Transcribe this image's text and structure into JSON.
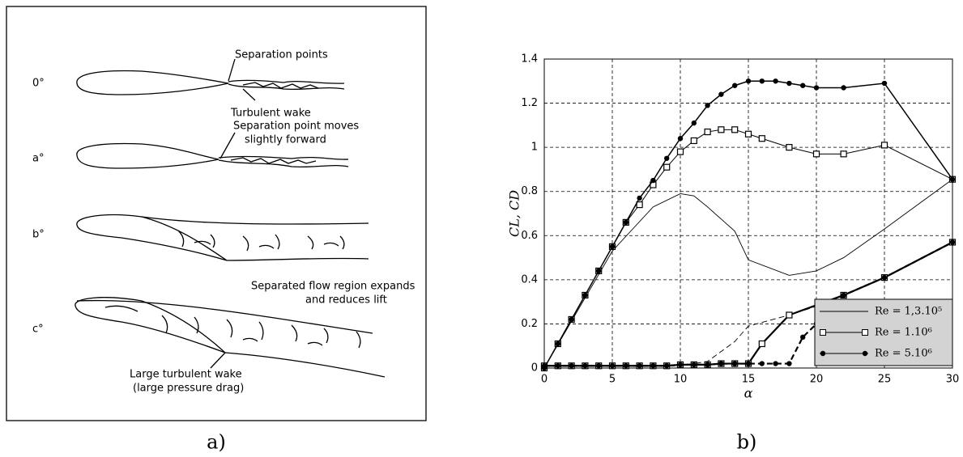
{
  "diagram": {
    "angles": [
      "0°",
      "a°",
      "b°",
      "c°"
    ],
    "labels": [
      "Separation points",
      "Turbulent wake",
      "Separation point moves",
      "slightly forward",
      "Separated flow region expands",
      "and reduces lift",
      "Large turbulent wake",
      "(large pressure drag)"
    ]
  },
  "captions": [
    "a)",
    "b)"
  ],
  "chart_data": {
    "type": "line",
    "xlabel": "α",
    "ylabel": "CL,  CD",
    "xlim": [
      0,
      30
    ],
    "xticks": [
      0,
      5,
      10,
      15,
      20,
      25,
      30
    ],
    "ylim": [
      0,
      1.4
    ],
    "yticks": [
      0,
      0.2,
      0.4,
      0.6,
      0.8,
      1,
      1.2,
      1.4
    ],
    "grid": true,
    "legend": "lower right",
    "series": [
      {
        "name": "Re = 1,3.10⁵",
        "color": "#000000",
        "marker": "none",
        "x": [
          0,
          5,
          8,
          10,
          11,
          12,
          14,
          15,
          18,
          20,
          22,
          25,
          30
        ],
        "values": [
          0,
          0.53,
          0.73,
          0.79,
          0.78,
          0.73,
          0.62,
          0.49,
          0.42,
          0.44,
          0.5,
          0.63,
          0.855
        ],
        "drag_x": [
          0,
          10,
          12,
          14,
          15,
          18,
          20,
          25,
          30
        ],
        "drag_values": [
          0.01,
          0.01,
          0.03,
          0.12,
          0.19,
          0.24,
          0.28,
          0.41,
          0.57
        ],
        "drag_dash": true
      },
      {
        "name": "Re = 1.10⁶",
        "color": "#000000",
        "marker": "square",
        "x": [
          0,
          1,
          2,
          3,
          4,
          5,
          6,
          7,
          8,
          9,
          10,
          11,
          12,
          13,
          14,
          15,
          16,
          18,
          20,
          22,
          25,
          30
        ],
        "values": [
          0,
          0.11,
          0.22,
          0.33,
          0.44,
          0.55,
          0.66,
          0.74,
          0.83,
          0.91,
          0.98,
          1.03,
          1.07,
          1.08,
          1.08,
          1.06,
          1.04,
          1.0,
          0.97,
          0.97,
          1.01,
          0.855
        ],
        "drag_x": [
          0,
          1,
          2,
          3,
          4,
          5,
          6,
          7,
          8,
          9,
          10,
          11,
          12,
          13,
          14,
          15,
          16,
          18,
          22,
          25,
          30
        ],
        "drag_values": [
          0.01,
          0.01,
          0.01,
          0.01,
          0.01,
          0.01,
          0.01,
          0.01,
          0.01,
          0.01,
          0.015,
          0.015,
          0.015,
          0.02,
          0.02,
          0.02,
          0.11,
          0.24,
          0.33,
          0.41,
          0.57
        ],
        "drag_dash": false
      },
      {
        "name": "Re = 5.10⁶",
        "color": "#000000",
        "marker": "circle",
        "x": [
          0,
          1,
          2,
          3,
          4,
          5,
          6,
          7,
          8,
          9,
          10,
          11,
          12,
          13,
          14,
          15,
          16,
          17,
          18,
          19,
          20,
          22,
          25,
          30
        ],
        "values": [
          0,
          0.11,
          0.22,
          0.33,
          0.44,
          0.55,
          0.66,
          0.77,
          0.85,
          0.95,
          1.04,
          1.11,
          1.19,
          1.24,
          1.28,
          1.3,
          1.3,
          1.3,
          1.29,
          1.28,
          1.27,
          1.27,
          1.29,
          0.855
        ],
        "drag_x": [
          0,
          1,
          2,
          3,
          4,
          5,
          6,
          7,
          8,
          9,
          10,
          11,
          12,
          13,
          14,
          15,
          16,
          17,
          18,
          19,
          20,
          22,
          25,
          30
        ],
        "drag_values": [
          0.01,
          0.01,
          0.01,
          0.01,
          0.01,
          0.01,
          0.01,
          0.01,
          0.01,
          0.01,
          0.015,
          0.015,
          0.015,
          0.02,
          0.02,
          0.02,
          0.02,
          0.02,
          0.02,
          0.14,
          0.2,
          0.33,
          0.41,
          0.57
        ],
        "drag_dash": true
      }
    ]
  }
}
